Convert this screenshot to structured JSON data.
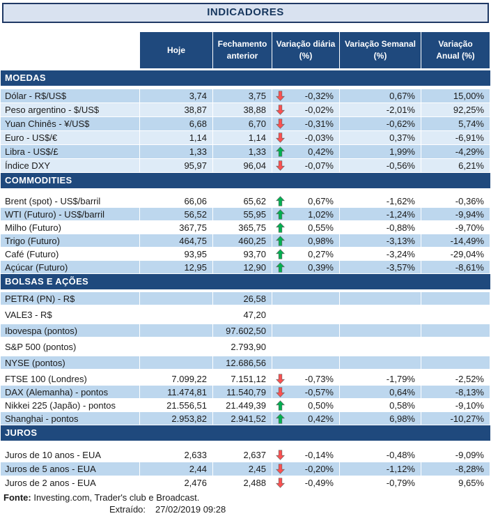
{
  "title": "INDICADORES",
  "header": {
    "hoje": "Hoje",
    "fechamento": "Fechamento anterior",
    "diaria": "Variação diária (%)",
    "semanal": "Variação Semanal (%)",
    "anual": "Variação Anual (%)"
  },
  "sections": [
    {
      "id": "moedas",
      "name": "MOEDAS",
      "rows": [
        {
          "label": "Dólar - R$/US$",
          "hoje": "3,74",
          "fechamento": "3,75",
          "arrow": "down",
          "diaria": "-0,32%",
          "semanal": "0,67%",
          "anual": "15,00%"
        },
        {
          "label": "Peso argentino - $/US$",
          "hoje": "38,87",
          "fechamento": "38,88",
          "arrow": "down",
          "diaria": "-0,02%",
          "semanal": "-2,01%",
          "anual": "92,25%"
        },
        {
          "label": "Yuan Chinês - ¥/US$",
          "hoje": "6,68",
          "fechamento": "6,70",
          "arrow": "down",
          "diaria": "-0,31%",
          "semanal": "-0,62%",
          "anual": "5,74%"
        },
        {
          "label": "Euro - US$/€",
          "hoje": "1,14",
          "fechamento": "1,14",
          "arrow": "down",
          "diaria": "-0,03%",
          "semanal": "0,37%",
          "anual": "-6,91%"
        },
        {
          "label": "Libra - US$/£",
          "hoje": "1,33",
          "fechamento": "1,33",
          "arrow": "up",
          "diaria": "0,42%",
          "semanal": "1,99%",
          "anual": "-4,29%"
        },
        {
          "label": "Índice DXY",
          "hoje": "95,97",
          "fechamento": "96,04",
          "arrow": "down",
          "diaria": "-0,07%",
          "semanal": "-0,56%",
          "anual": "6,21%"
        }
      ]
    },
    {
      "id": "commodities",
      "name": "COMMODITIES",
      "rows": [
        {
          "label": "Brent (spot) - US$/barril",
          "hoje": "66,06",
          "fechamento": "65,62",
          "arrow": "up",
          "diaria": "0,67%",
          "semanal": "-1,62%",
          "anual": "-0,36%"
        },
        {
          "label": "WTI (Futuro) - US$/barril",
          "hoje": "56,52",
          "fechamento": "55,95",
          "arrow": "up",
          "diaria": "1,02%",
          "semanal": "-1,24%",
          "anual": "-9,94%"
        },
        {
          "label": "Milho (Futuro)",
          "hoje": "367,75",
          "fechamento": "365,75",
          "arrow": "up",
          "diaria": "0,55%",
          "semanal": "-0,88%",
          "anual": "-9,70%"
        },
        {
          "label": "Trigo (Futuro)",
          "hoje": "464,75",
          "fechamento": "460,25",
          "arrow": "up",
          "diaria": "0,98%",
          "semanal": "-3,13%",
          "anual": "-14,49%"
        },
        {
          "label": "Café (Futuro)",
          "hoje": "93,95",
          "fechamento": "93,70",
          "arrow": "up",
          "diaria": "0,27%",
          "semanal": "-3,24%",
          "anual": "-29,04%"
        },
        {
          "label": "Açúcar (Futuro)",
          "hoje": "12,95",
          "fechamento": "12,90",
          "arrow": "up",
          "diaria": "0,39%",
          "semanal": "-3,57%",
          "anual": "-8,61%"
        }
      ]
    },
    {
      "id": "bolsas",
      "name": "BOLSAS E AÇÕES",
      "rows": [
        {
          "label": "PETR4 (PN) - R$",
          "hoje": "",
          "fechamento": "26,58",
          "arrow": "",
          "diaria": "",
          "semanal": "",
          "anual": ""
        },
        {
          "label": "VALE3 - R$",
          "hoje": "",
          "fechamento": "47,20",
          "arrow": "",
          "diaria": "",
          "semanal": "",
          "anual": ""
        },
        {
          "label": "Ibovespa (pontos)",
          "hoje": "",
          "fechamento": "97.602,50",
          "arrow": "",
          "diaria": "",
          "semanal": "",
          "anual": ""
        },
        {
          "label": "S&P 500 (pontos)",
          "hoje": "",
          "fechamento": "2.793,90",
          "arrow": "",
          "diaria": "",
          "semanal": "",
          "anual": ""
        },
        {
          "label": "NYSE (pontos)",
          "hoje": "",
          "fechamento": "12.686,56",
          "arrow": "",
          "diaria": "",
          "semanal": "",
          "anual": ""
        },
        {
          "label": "FTSE 100 (Londres)",
          "hoje": "7.099,22",
          "fechamento": "7.151,12",
          "arrow": "down",
          "diaria": "-0,73%",
          "semanal": "-1,79%",
          "anual": "-2,52%"
        },
        {
          "label": "DAX (Alemanha) - pontos",
          "hoje": "11.474,81",
          "fechamento": "11.540,79",
          "arrow": "down",
          "diaria": "-0,57%",
          "semanal": "0,64%",
          "anual": "-8,13%"
        },
        {
          "label": "Nikkei 225 (Japão) - pontos",
          "hoje": "21.556,51",
          "fechamento": "21.449,39",
          "arrow": "up",
          "diaria": "0,50%",
          "semanal": "0,58%",
          "anual": "-9,10%"
        },
        {
          "label": "Shanghai - pontos",
          "hoje": "2.953,82",
          "fechamento": "2.941,52",
          "arrow": "up",
          "diaria": "0,42%",
          "semanal": "6,98%",
          "anual": "-10,27%"
        }
      ]
    },
    {
      "id": "juros",
      "name": "JUROS",
      "rows": [
        {
          "label": "Juros de 10 anos - EUA",
          "hoje": "2,633",
          "fechamento": "2,637",
          "arrow": "down",
          "diaria": "-0,14%",
          "semanal": "-0,48%",
          "anual": "-9,09%"
        },
        {
          "label": "Juros de 5 anos - EUA",
          "hoje": "2,44",
          "fechamento": "2,45",
          "arrow": "down",
          "diaria": "-0,20%",
          "semanal": "-1,12%",
          "anual": "-8,28%"
        },
        {
          "label": "Juros de 2 anos - EUA",
          "hoje": "2,476",
          "fechamento": "2,488",
          "arrow": "down",
          "diaria": "-0,49%",
          "semanal": "-0,79%",
          "anual": "9,65%"
        }
      ]
    }
  ],
  "footer": {
    "fonte_label": "Fonte:",
    "fonte_text": " Investing.com, Trader's club e Broadcast.",
    "extraido_label": "Extraído:",
    "extraido_value": "27/02/2019 09:28"
  },
  "icons": {
    "up": "up-arrow-icon",
    "down": "down-arrow-icon"
  },
  "colors": {
    "header_bg": "#1F497D",
    "title_bg": "#D9E2F0",
    "title_border": "#1F3864",
    "row_tinted": "#BDD7EE",
    "row_light_blue": "#DEEBF7",
    "row_white": "#FFFFFF",
    "arrow_up": "#00B050",
    "arrow_down": "#FF5050"
  }
}
